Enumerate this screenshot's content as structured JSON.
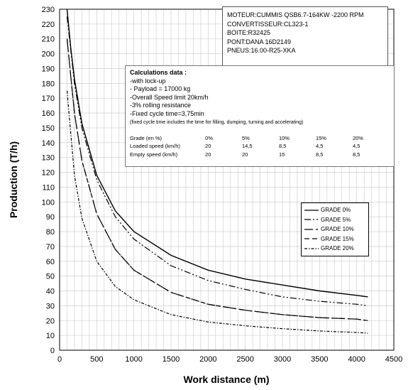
{
  "chart_data": {
    "type": "line",
    "xlabel": "Work distance (m)",
    "ylabel": "Production (T/h)",
    "xlim": [
      0,
      4500
    ],
    "ylim": [
      0,
      230
    ],
    "xticks": [
      0,
      500,
      1000,
      1500,
      2000,
      2500,
      3000,
      3500,
      4000,
      4500
    ],
    "yticks": [
      0,
      10,
      20,
      30,
      40,
      50,
      60,
      70,
      80,
      90,
      100,
      110,
      120,
      130,
      140,
      150,
      160,
      170,
      180,
      190,
      200,
      210,
      220,
      230
    ],
    "grid": true,
    "legend_position": "right",
    "series": [
      {
        "name": "GRADE 0%",
        "style": "solid",
        "color": "#000000",
        "x": [
          100,
          150,
          200,
          300,
          500,
          750,
          1000,
          1500,
          2000,
          2500,
          3000,
          3500,
          4000,
          4150
        ],
        "y": [
          232,
          204,
          183,
          153,
          118,
          94,
          80,
          64,
          54,
          48,
          44,
          40,
          37,
          36
        ]
      },
      {
        "name": "GRADE 5%",
        "style": "dash-dot-dot",
        "color": "#000000",
        "x": [
          100,
          200,
          300,
          500,
          750,
          1000,
          1500,
          2000,
          2500,
          3000,
          3500,
          4000,
          4150
        ],
        "y": [
          225,
          180,
          150,
          115,
          90,
          75,
          57,
          47,
          41,
          36,
          33,
          31,
          30
        ]
      },
      {
        "name": "GRADE 10%",
        "style": "long-dash-dot",
        "color": "#000000",
        "x": [
          100,
          200,
          300,
          500,
          750,
          1000,
          1500,
          2000,
          2500,
          3000,
          3500,
          4000,
          4150
        ],
        "y": [
          210,
          160,
          128,
          92,
          68,
          54,
          39,
          31,
          27,
          24,
          22,
          21,
          20
        ]
      },
      {
        "name": "GRADE 15%",
        "style": "dash",
        "color": "#000000",
        "x": [
          100,
          200,
          300,
          500,
          750,
          1000,
          1500,
          2000,
          2500,
          3000,
          3500,
          4000,
          4150
        ],
        "y": [
          210,
          160,
          128,
          92,
          68,
          54,
          39,
          31,
          27,
          24,
          22,
          21,
          20
        ]
      },
      {
        "name": "GRADE 20%",
        "style": "dash-dot",
        "color": "#000000",
        "x": [
          100,
          200,
          300,
          500,
          750,
          1000,
          1500,
          2000,
          2500,
          3000,
          3500,
          4000,
          4150
        ],
        "y": [
          175,
          118,
          89,
          60,
          43,
          34,
          24,
          19,
          16.5,
          14.5,
          13,
          12,
          11.5
        ]
      }
    ]
  },
  "info_box": {
    "lines": [
      "MOTEUR:CUMMIS QSB6.7-164KW -2200 RPM",
      "CONVERTISSEUR:CL323-1",
      "BOITE:R32425",
      "PONT:DANA 16D2149",
      "PNEUS:16.00-R25-XKA"
    ]
  },
  "calc_box": {
    "title": "Calculations data :",
    "lines": [
      "-with lock-up",
      "- Payload = 17000 kg",
      "-Overall Speed limit 20km/h",
      "-3% rolling resistance",
      "-Fixed cycle time=3,75min"
    ],
    "note": "(fixed cycle time includes the time for filling, dumping, turning and accelerating)",
    "table": [
      {
        "label": "Grade (en %)",
        "values": [
          "0%",
          "5%",
          "10%",
          "15%",
          "20%"
        ]
      },
      {
        "label": "Loaded speed (km/h)",
        "values": [
          "20",
          "14,5",
          "8,5",
          "4,5",
          "4,5"
        ]
      },
      {
        "label": "Empty speed  (km/h)",
        "values": [
          "20",
          "20",
          "15",
          "8,5",
          "8,5"
        ]
      }
    ]
  }
}
